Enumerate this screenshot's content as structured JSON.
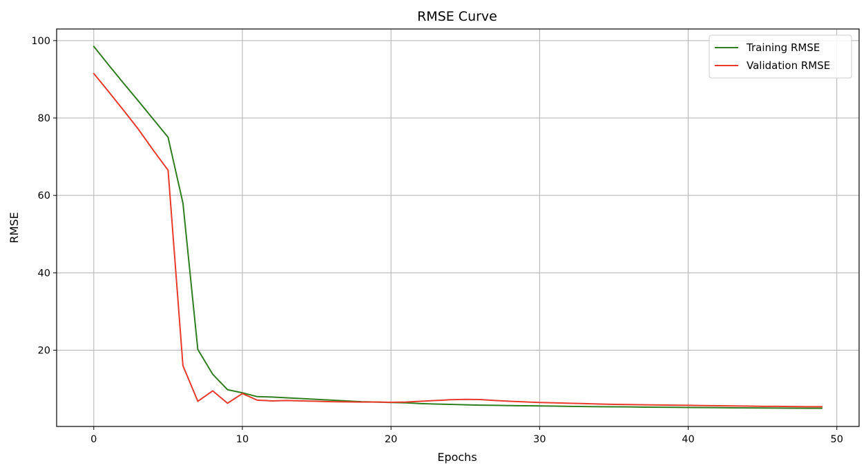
{
  "chart_data": {
    "type": "line",
    "title": "RMSE Curve",
    "xlabel": "Epochs",
    "ylabel": "RMSE",
    "xlim": [
      -2.5,
      51.5
    ],
    "ylim": [
      0.3,
      103
    ],
    "xticks": [
      0,
      10,
      20,
      30,
      40,
      50
    ],
    "yticks": [
      20,
      40,
      60,
      80,
      100
    ],
    "grid": true,
    "legend": "top-right",
    "x": [
      0,
      1,
      2,
      3,
      4,
      5,
      6,
      7,
      8,
      9,
      10,
      11,
      12,
      13,
      14,
      15,
      16,
      17,
      18,
      19,
      20,
      21,
      22,
      23,
      24,
      25,
      26,
      27,
      28,
      29,
      30,
      31,
      32,
      33,
      34,
      35,
      36,
      37,
      38,
      39,
      40,
      41,
      42,
      43,
      44,
      45,
      46,
      47,
      48,
      49
    ],
    "series": [
      {
        "name": "Training RMSE",
        "color": "#2e7d1f",
        "values": [
          98.5,
          93.7,
          89.0,
          84.4,
          79.7,
          75.0,
          58.0,
          20.2,
          13.8,
          9.8,
          9.0,
          8.0,
          7.9,
          7.7,
          7.5,
          7.3,
          7.1,
          6.9,
          6.7,
          6.6,
          6.5,
          6.4,
          6.2,
          6.1,
          6.0,
          5.9,
          5.8,
          5.75,
          5.7,
          5.65,
          5.6,
          5.55,
          5.5,
          5.45,
          5.4,
          5.38,
          5.35,
          5.3,
          5.28,
          5.25,
          5.2,
          5.18,
          5.15,
          5.12,
          5.1,
          5.08,
          5.05,
          5.02,
          5.0,
          5.0
        ]
      },
      {
        "name": "Validation RMSE",
        "color": "#e8392a",
        "values": [
          91.5,
          86.8,
          82.0,
          77.1,
          71.7,
          66.5,
          16.0,
          6.8,
          9.5,
          6.3,
          8.8,
          7.1,
          6.9,
          7.0,
          6.9,
          6.8,
          6.7,
          6.65,
          6.6,
          6.6,
          6.55,
          6.6,
          6.8,
          7.0,
          7.2,
          7.3,
          7.25,
          7.0,
          6.8,
          6.65,
          6.5,
          6.4,
          6.3,
          6.2,
          6.1,
          6.0,
          5.95,
          5.9,
          5.85,
          5.8,
          5.75,
          5.7,
          5.65,
          5.6,
          5.55,
          5.5,
          5.5,
          5.45,
          5.4,
          5.4
        ]
      }
    ]
  }
}
